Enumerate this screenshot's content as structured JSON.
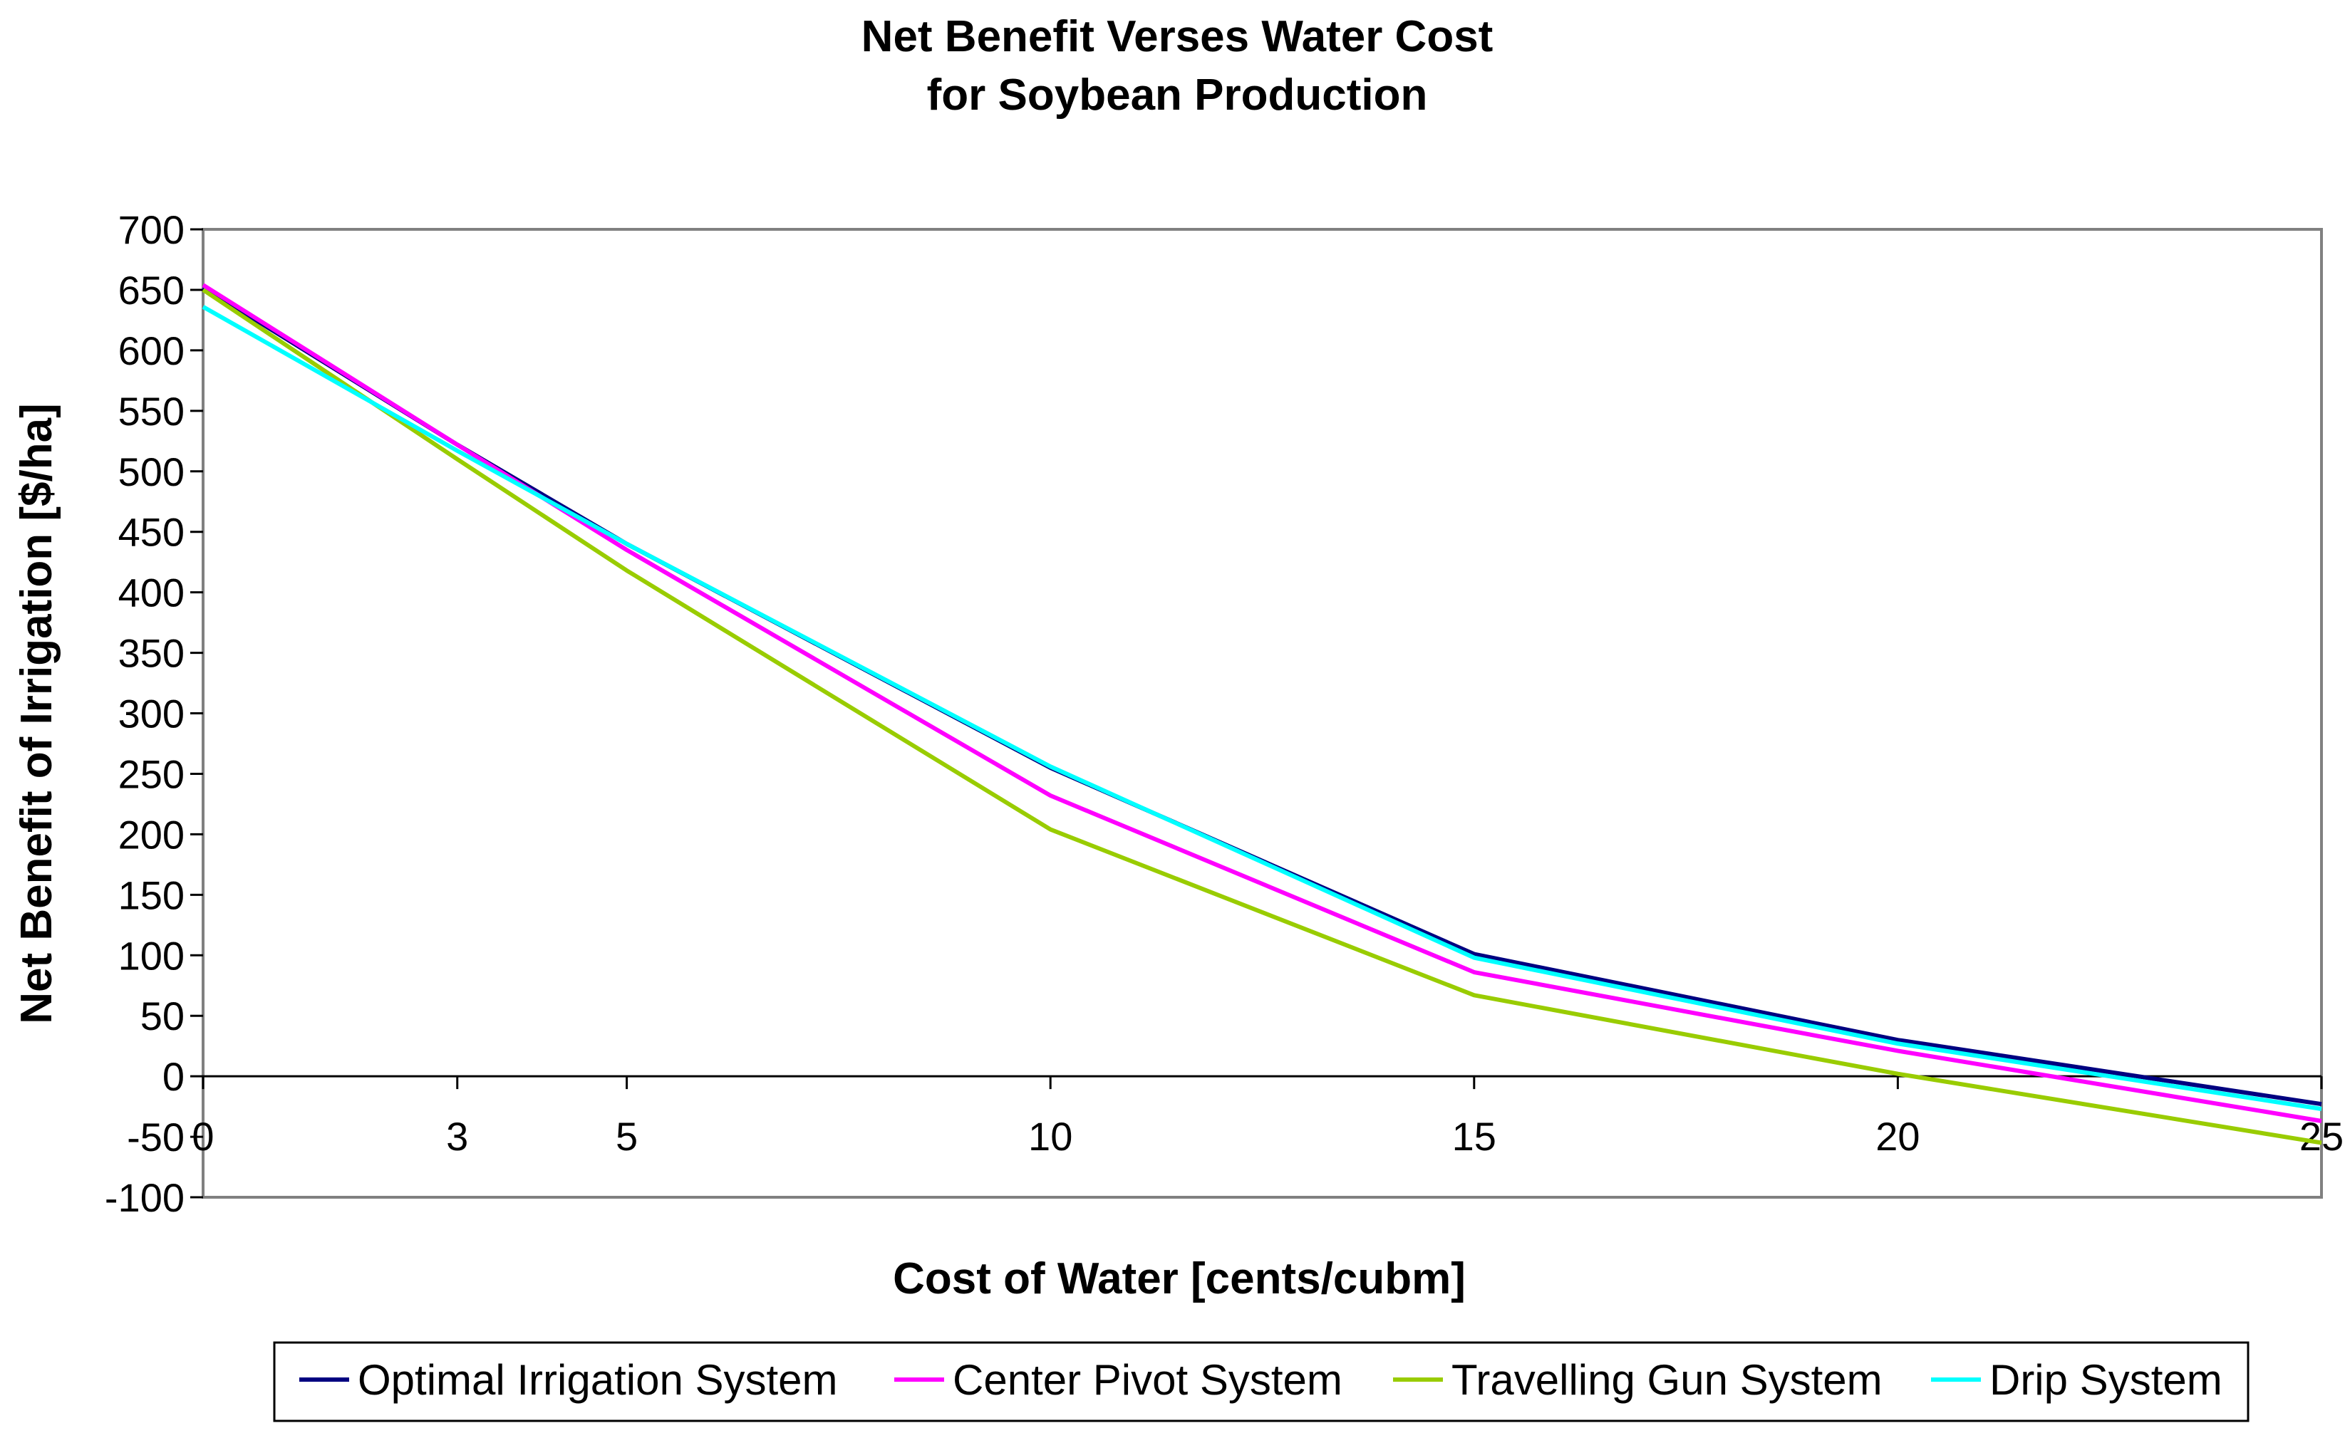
{
  "chart_data": {
    "type": "line",
    "title": "Net Benefit Verses Water Cost",
    "subtitle": "for Soybean Production",
    "xlabel": "Cost of Water [cents/cubm]",
    "ylabel": "Net Benefit of Irrigation [$/ha]",
    "categories": [
      "0",
      "3",
      "5",
      "10",
      "15",
      "20",
      "25"
    ],
    "ylim": [
      -100,
      700
    ],
    "yticks": [
      700,
      650,
      600,
      550,
      500,
      450,
      400,
      350,
      300,
      250,
      200,
      150,
      100,
      50,
      0,
      -50,
      -100
    ],
    "grid": false,
    "legend_position": "bottom",
    "series": [
      {
        "name": "Optimal Irrigation System",
        "color": "#000080",
        "values": [
          652,
          522,
          440,
          255,
          101,
          30,
          -23
        ]
      },
      {
        "name": "Center Pivot System",
        "color": "#ff00ff",
        "values": [
          654,
          522,
          435,
          232,
          86,
          21,
          -37
        ]
      },
      {
        "name": "Travelling Gun System",
        "color": "#99cc00",
        "values": [
          650,
          510,
          418,
          204,
          67,
          2,
          -55
        ]
      },
      {
        "name": "Drip System",
        "color": "#00ffff",
        "values": [
          636,
          517,
          440,
          256,
          98,
          27,
          -27
        ]
      }
    ]
  }
}
